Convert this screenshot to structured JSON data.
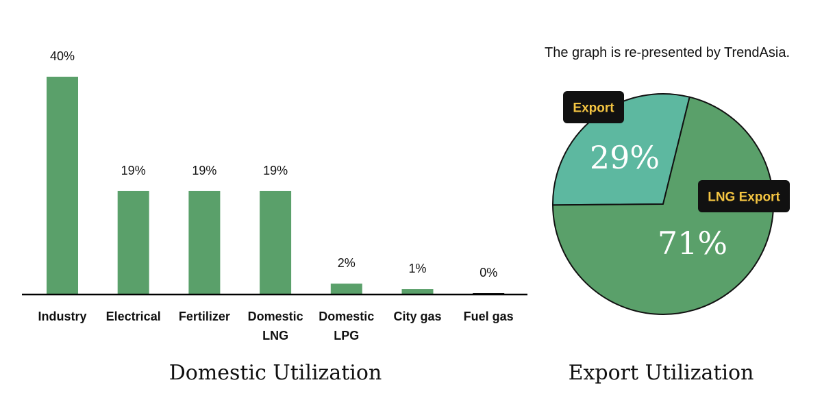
{
  "note": "The graph is re-presented by TrendAsia.",
  "colors": {
    "bar": "#5aa06a",
    "pie_export": "#5db8a0",
    "pie_lng_export": "#5aa06a",
    "label_bg": "#111111",
    "label_text": "#f4c542",
    "axis": "#000000"
  },
  "chart_data": [
    {
      "type": "bar",
      "title": "Domestic Utilization",
      "categories": [
        [
          "Industry"
        ],
        [
          "Electrical"
        ],
        [
          "Fertilizer"
        ],
        [
          "Domestic",
          "LNG"
        ],
        [
          "Domestic",
          "LPG"
        ],
        [
          "City gas"
        ],
        [
          "Fuel gas"
        ]
      ],
      "values": [
        40,
        19,
        19,
        19,
        2,
        1,
        0
      ],
      "value_labels": [
        "40%",
        "19%",
        "19%",
        "19%",
        "2%",
        "1%",
        "0%"
      ],
      "ylim": [
        0,
        40
      ],
      "unit": "%",
      "grid": false
    },
    {
      "type": "pie",
      "title": "Export Utilization",
      "slices": [
        {
          "label": "Export",
          "value": 29,
          "value_label": "29%"
        },
        {
          "label": "LNG Export",
          "value": 71,
          "value_label": "71%"
        }
      ]
    }
  ]
}
